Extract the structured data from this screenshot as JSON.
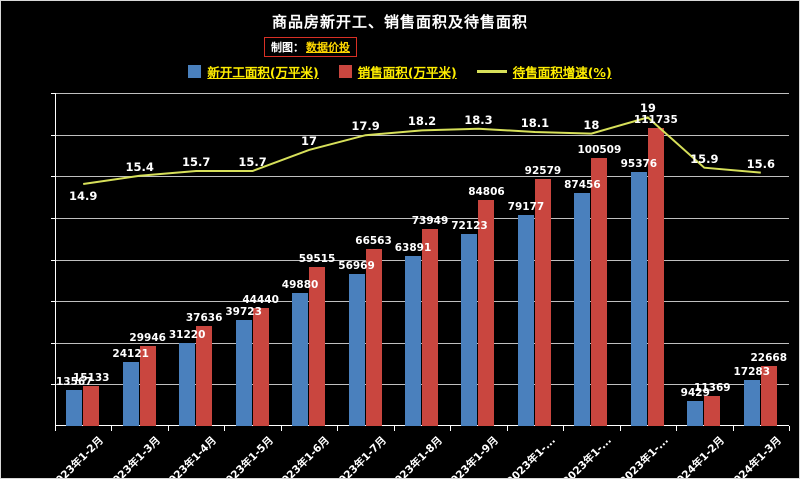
{
  "header": {
    "title": "商品房新开工、销售面积及待售面积",
    "credit_label": "制图：",
    "credit_name": "数据价投"
  },
  "legend": [
    {
      "label": "新开工面积(万平米)",
      "marker": "square",
      "color": "#4a80bd"
    },
    {
      "label": "销售面积(万平米)",
      "marker": "square",
      "color": "#c9463f"
    },
    {
      "label": "待售面积增速(%)",
      "marker": "line",
      "color": "#d7e05a"
    }
  ],
  "colors": {
    "background": "#000000",
    "text": "#ffffff",
    "legend_text": "#ffee00",
    "credit_border": "#d93025",
    "credit_name": "#ffd800",
    "gridline": "rgba(255,255,255,0.75)"
  },
  "chart_data": {
    "type": "bar",
    "title": "商品房新开工、销售面积及待售面积",
    "categories": [
      "2023年1-2月",
      "2023年1-3月",
      "2023年1-4月",
      "2023年1-5月",
      "2023年1-6月",
      "2023年1-7月",
      "2023年1-8月",
      "2023年1-9月",
      "2023年1-...",
      "2023年1-...",
      "2023年1-...",
      "2024年1-2月",
      "2024年1-3月"
    ],
    "series": [
      {
        "name": "新开工面积(万平米)",
        "type": "bar",
        "color": "#4a80bd",
        "values": [
          13567,
          24121,
          31220,
          39723,
          49880,
          56969,
          63891,
          72123,
          79177,
          87456,
          95376,
          9429,
          17283
        ]
      },
      {
        "name": "销售面积(万平米)",
        "type": "bar",
        "color": "#c9463f",
        "values": [
          15133,
          29946,
          37636,
          44440,
          59515,
          66563,
          73949,
          84806,
          92579,
          100509,
          111735,
          11369,
          22668
        ]
      },
      {
        "name": "待售面积增速(%)",
        "type": "line",
        "axis": "secondary",
        "color": "#d7e05a",
        "values": [
          14.9,
          15.4,
          15.7,
          15.7,
          17,
          17.9,
          18.2,
          18.3,
          18.1,
          18,
          19,
          15.9,
          15.6
        ]
      }
    ],
    "ylim": [
      0,
      125000
    ],
    "y2lim": [
      0,
      20.5
    ],
    "grid": true,
    "grid_intervals": 8,
    "legend_position": "top",
    "background": "#000000",
    "data_labels": true
  }
}
